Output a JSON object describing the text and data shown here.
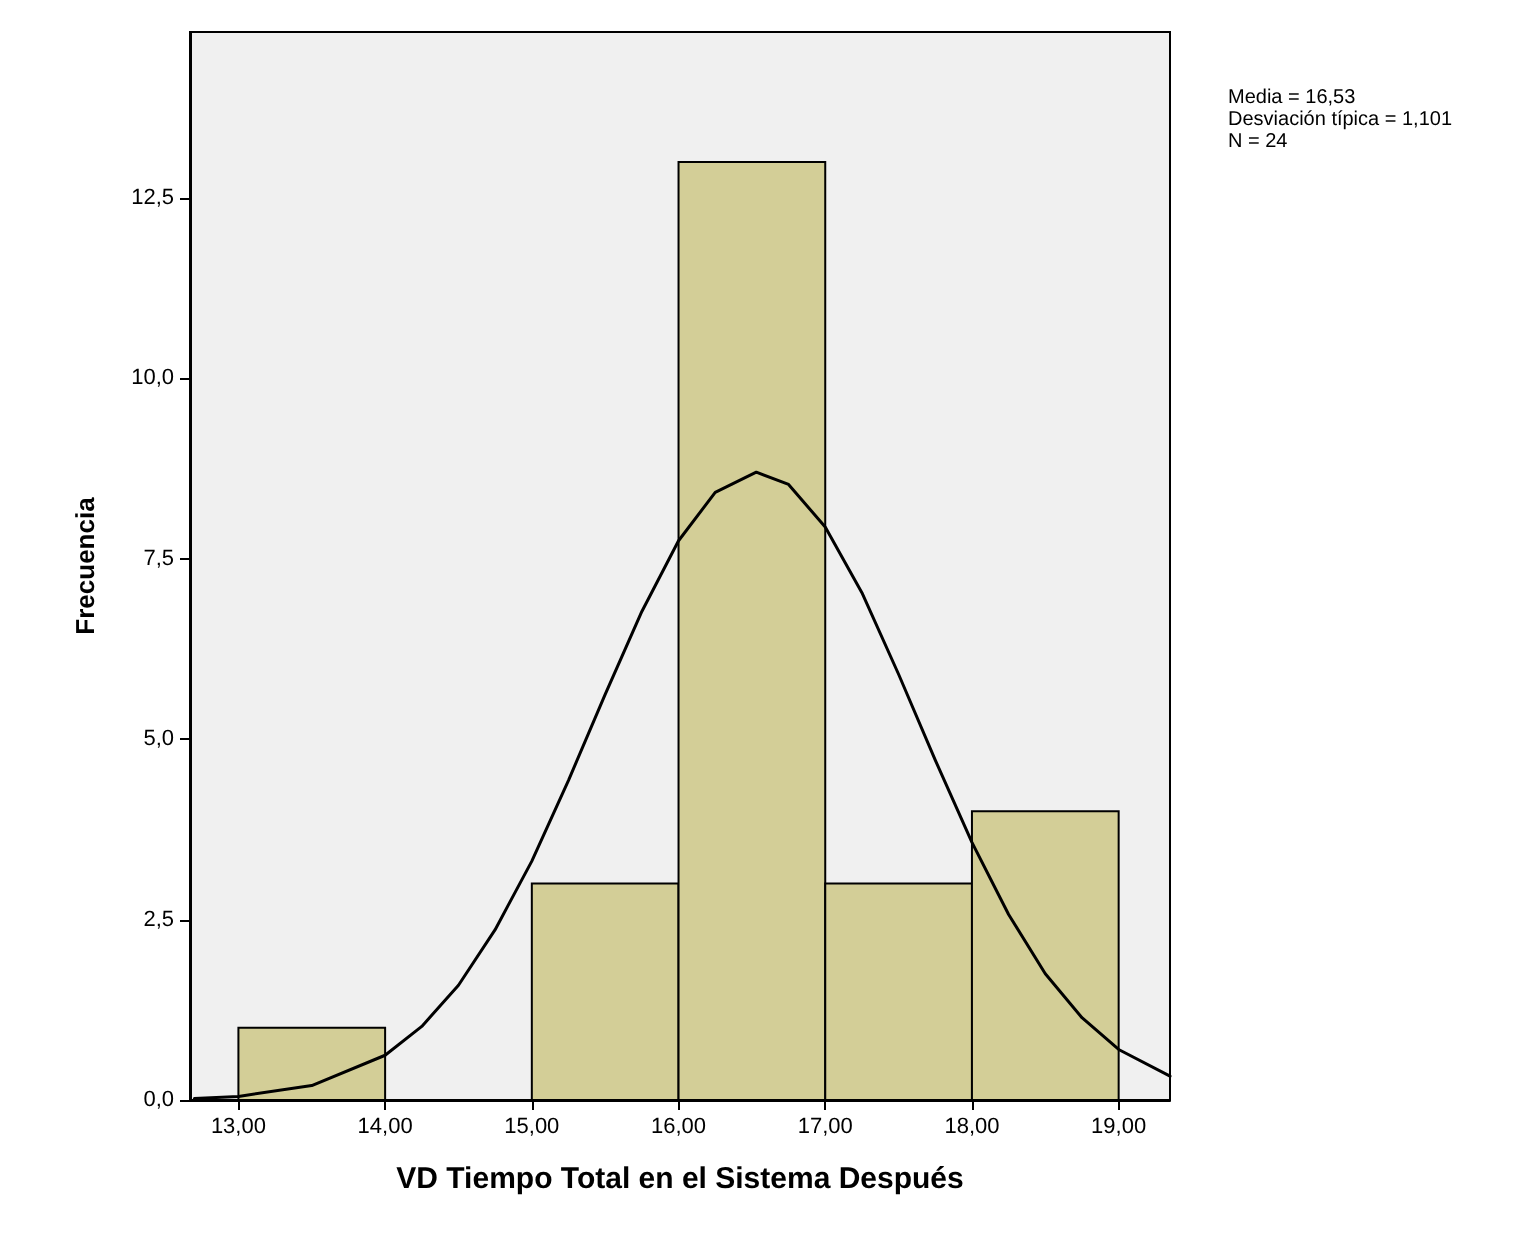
{
  "chart_data": {
    "type": "histogram",
    "xlabel": "VD Tiempo Total en el Sistema Después",
    "ylabel": "Frecuencia",
    "bins": [
      13,
      14,
      15,
      16,
      17,
      18,
      19
    ],
    "values": [
      1,
      0,
      3,
      13,
      3,
      4
    ],
    "color": "#d3ce97",
    "series": [
      {
        "type": "line",
        "color": "#000000",
        "marker": "none",
        "x": [
          12.7,
          13,
          13.5,
          14,
          14.25,
          14.5,
          14.75,
          15,
          15.25,
          15.5,
          15.75,
          16,
          16.25,
          16.53,
          16.75,
          17,
          17.25,
          17.5,
          17.75,
          18,
          18.25,
          18.5,
          18.75,
          19,
          19.35
        ],
        "values": [
          0.02,
          0.05,
          0.2,
          0.62,
          1.02,
          1.59,
          2.36,
          3.31,
          4.43,
          5.62,
          6.77,
          7.75,
          8.42,
          8.7,
          8.53,
          7.94,
          7.03,
          5.9,
          4.71,
          3.57,
          2.57,
          1.75,
          1.14,
          0.7,
          0.33
        ]
      }
    ],
    "xlim": [
      12.67,
      19.35
    ],
    "ylim": [
      0,
      14.8
    ],
    "xticks": [
      {
        "value": 13,
        "label": "13,00"
      },
      {
        "value": 14,
        "label": "14,00"
      },
      {
        "value": 15,
        "label": "15,00"
      },
      {
        "value": 16,
        "label": "16,00"
      },
      {
        "value": 17,
        "label": "17,00"
      },
      {
        "value": 18,
        "label": "18,00"
      },
      {
        "value": 19,
        "label": "19,00"
      }
    ],
    "yticks": [
      {
        "value": 0,
        "label": "0,0"
      },
      {
        "value": 2.5,
        "label": "2,5"
      },
      {
        "value": 5,
        "label": "5,0"
      },
      {
        "value": 7.5,
        "label": "7,5"
      },
      {
        "value": 10,
        "label": "10,0"
      },
      {
        "value": 12.5,
        "label": "12,5"
      }
    ],
    "grid": false,
    "annotations": [
      "Media = 16,53",
      "Desviación típica = 1,101",
      "N = 24"
    ]
  }
}
